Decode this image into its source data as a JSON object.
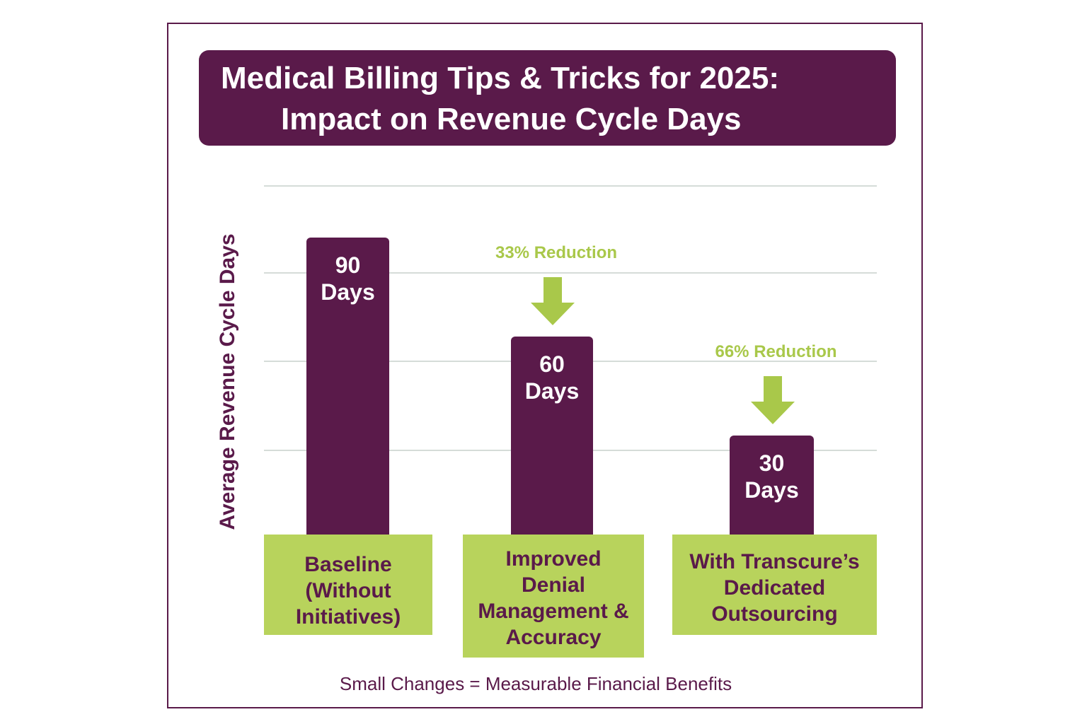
{
  "chart_data": {
    "type": "bar",
    "title": "Medical Billing Tips & Tricks for 2025: Impact on Revenue Cycle Days",
    "title_lines": [
      "Medical Billing Tips & Tricks for 2025:",
      "Impact on Revenue Cycle Days"
    ],
    "ylabel": "Average Revenue Cycle Days",
    "categories": [
      "Baseline (Without Initiatives)",
      "Improved Denial Management & Accuracy",
      "With Transcure's Dedicated Outsourcing"
    ],
    "category_lines": [
      [
        "Baseline",
        "(Without",
        "Initiatives)"
      ],
      [
        "Improved",
        "Denial",
        "Management &",
        "Accuracy"
      ],
      [
        "With Transcure’s",
        "Dedicated",
        "Outsourcing"
      ]
    ],
    "values": [
      90,
      60,
      30
    ],
    "data_labels": [
      [
        "90",
        "Days"
      ],
      [
        "60",
        "Days"
      ],
      [
        "30",
        "Days"
      ]
    ],
    "annotations": [
      "",
      "33% Reduction",
      "66% Reduction"
    ],
    "footer": "Small Changes = Measurable Financial Benefits",
    "grid": true,
    "colors": {
      "bar": "#5a1a4a",
      "category_box": "#b8d35c",
      "annotation": "#a9c84a",
      "title_bg": "#5a1a4a"
    }
  }
}
